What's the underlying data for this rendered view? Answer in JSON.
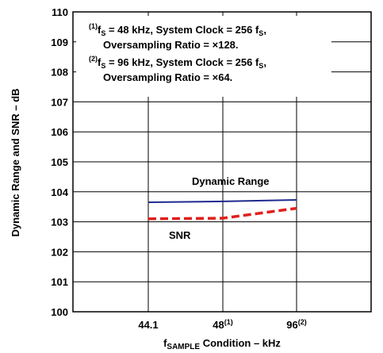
{
  "chart_data": {
    "type": "line",
    "xlabel_main": "f",
    "xlabel_sub": "SAMPLE",
    "xlabel_rest": " Condition – kHz",
    "ylabel": "Dynamic Range and SNR – dB",
    "ylim": [
      100,
      110
    ],
    "yticks": [
      "100",
      "101",
      "102",
      "103",
      "104",
      "105",
      "106",
      "107",
      "108",
      "109",
      "110"
    ],
    "categories": [
      {
        "label": "44.1",
        "sup": ""
      },
      {
        "label": "48",
        "sup": "(1)"
      },
      {
        "label": "96",
        "sup": "(2)"
      }
    ],
    "grid": true,
    "series": [
      {
        "name": "Dynamic Range",
        "values": [
          103.65,
          103.68,
          103.73
        ],
        "color": "#1f2a8f",
        "style": "solid"
      },
      {
        "name": "SNR",
        "values": [
          103.1,
          103.12,
          103.45
        ],
        "color": "#e0201c",
        "style": "dashed"
      }
    ],
    "annotations": {
      "note1_sup": "(1)",
      "note1_a": "f",
      "note1_a_sub": "S",
      "note1_b": " = 48 kHz, System Clock = 256 f",
      "note1_b_sub": "S",
      "note1_c": ",",
      "note1_line2": "Oversampling Ratio = ×128.",
      "note2_sup": "(2)",
      "note2_a": "f",
      "note2_a_sub": "S",
      "note2_b": " = 96 kHz, System Clock = 256 f",
      "note2_b_sub": "S",
      "note2_c": ",",
      "note2_line2": "Oversampling Ratio = ×64."
    }
  }
}
